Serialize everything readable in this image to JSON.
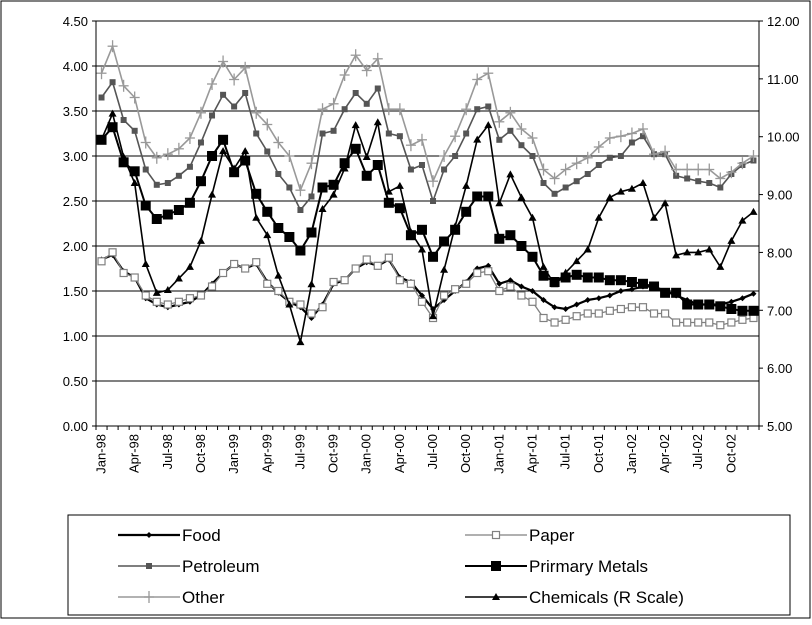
{
  "chart_data": {
    "type": "line",
    "categories": [
      "Jan-98",
      null,
      null,
      "Apr-98",
      null,
      null,
      "Jul-98",
      null,
      null,
      "Oct-98",
      null,
      null,
      "Jan-99",
      null,
      null,
      "Apr-99",
      null,
      null,
      "Jul-99",
      null,
      null,
      "Oct-99",
      null,
      null,
      "Jan-00",
      null,
      null,
      "Apr-00",
      null,
      null,
      "Jul-00",
      null,
      null,
      "Oct-00",
      null,
      null,
      "Jan-01",
      null,
      null,
      "Apr-01",
      null,
      null,
      "Jul-01",
      null,
      null,
      "Oct-01",
      null,
      null,
      "Jan-02",
      null,
      null,
      "Apr-02",
      null,
      null,
      "Jul-02",
      null,
      null,
      "Oct-02",
      null,
      null
    ],
    "ylim": [
      0,
      4.5
    ],
    "yticks": [
      {
        "value": 0,
        "label": "0.00"
      },
      {
        "value": 0.5,
        "label": "0.50"
      },
      {
        "value": 1,
        "label": "1.00"
      },
      {
        "value": 1.5,
        "label": "1.50"
      },
      {
        "value": 2,
        "label": "2.00"
      },
      {
        "value": 2.5,
        "label": "2.50"
      },
      {
        "value": 3,
        "label": "3.00"
      },
      {
        "value": 3.5,
        "label": "3.50"
      },
      {
        "value": 4,
        "label": "4.00"
      },
      {
        "value": 4.5,
        "label": "4.50"
      }
    ],
    "y2lim": [
      5,
      12
    ],
    "y2ticks": [
      {
        "value": 5,
        "label": "5.00"
      },
      {
        "value": 6,
        "label": "6.00"
      },
      {
        "value": 7,
        "label": "7.00"
      },
      {
        "value": 8,
        "label": "8.00"
      },
      {
        "value": 9,
        "label": "9.00"
      },
      {
        "value": 10,
        "label": "10.00"
      },
      {
        "value": 11,
        "label": "11.00"
      },
      {
        "value": 12,
        "label": "12.00"
      }
    ],
    "grid": true,
    "legend": "bottom",
    "series": [
      {
        "name": "Food",
        "color": "#000000",
        "marker": "diamond",
        "values": [
          1.85,
          1.9,
          1.72,
          1.65,
          1.42,
          1.35,
          1.32,
          1.35,
          1.38,
          1.45,
          1.58,
          1.7,
          1.8,
          1.75,
          1.8,
          1.6,
          1.48,
          1.38,
          1.32,
          1.2,
          1.35,
          1.58,
          1.62,
          1.75,
          1.82,
          1.78,
          1.85,
          1.65,
          1.6,
          1.45,
          1.3,
          1.4,
          1.5,
          1.6,
          1.75,
          1.78,
          1.58,
          1.62,
          1.55,
          1.5,
          1.4,
          1.32,
          1.3,
          1.35,
          1.4,
          1.42,
          1.45,
          1.5,
          1.52,
          1.55,
          1.55,
          1.5,
          1.45,
          1.4,
          1.35,
          1.35,
          1.35,
          1.38,
          1.42,
          1.47
        ]
      },
      {
        "name": "Paper",
        "color": "#808080",
        "marker": "square-open",
        "values": [
          1.83,
          1.93,
          1.7,
          1.65,
          1.45,
          1.38,
          1.35,
          1.38,
          1.42,
          1.45,
          1.55,
          1.7,
          1.8,
          1.75,
          1.82,
          1.58,
          1.5,
          1.38,
          1.35,
          1.25,
          1.32,
          1.6,
          1.62,
          1.75,
          1.85,
          1.78,
          1.87,
          1.62,
          1.58,
          1.38,
          1.2,
          1.45,
          1.52,
          1.58,
          1.7,
          1.72,
          1.5,
          1.55,
          1.45,
          1.38,
          1.2,
          1.15,
          1.18,
          1.22,
          1.25,
          1.25,
          1.28,
          1.3,
          1.32,
          1.32,
          1.25,
          1.25,
          1.15,
          1.15,
          1.15,
          1.15,
          1.12,
          1.15,
          1.18,
          1.2
        ]
      },
      {
        "name": "Petroleum",
        "color": "#555555",
        "marker": "square",
        "values": [
          3.65,
          3.82,
          3.4,
          3.28,
          2.85,
          2.68,
          2.7,
          2.78,
          2.88,
          3.15,
          3.45,
          3.68,
          3.55,
          3.7,
          3.25,
          3.05,
          2.8,
          2.65,
          2.4,
          2.55,
          3.25,
          3.28,
          3.52,
          3.7,
          3.58,
          3.75,
          3.25,
          3.22,
          2.85,
          2.9,
          2.5,
          2.85,
          3.0,
          3.25,
          3.52,
          3.55,
          3.18,
          3.28,
          3.12,
          3.0,
          2.7,
          2.58,
          2.65,
          2.72,
          2.8,
          2.9,
          2.98,
          3.0,
          3.15,
          3.22,
          3.02,
          3.02,
          2.78,
          2.75,
          2.72,
          2.7,
          2.65,
          2.8,
          2.9,
          2.95
        ]
      },
      {
        "name": "Prirmary Metals",
        "color": "#000000",
        "marker": "square-big",
        "values": [
          3.18,
          3.32,
          2.93,
          2.83,
          2.45,
          2.3,
          2.35,
          2.4,
          2.48,
          2.72,
          3.0,
          3.18,
          2.82,
          2.95,
          2.58,
          2.38,
          2.2,
          2.1,
          1.95,
          2.15,
          2.65,
          2.68,
          2.92,
          3.08,
          2.78,
          2.9,
          2.48,
          2.42,
          2.12,
          2.18,
          1.88,
          2.05,
          2.18,
          2.38,
          2.55,
          2.55,
          2.08,
          2.12,
          2.0,
          1.88,
          1.67,
          1.6,
          1.65,
          1.68,
          1.65,
          1.65,
          1.62,
          1.62,
          1.6,
          1.58,
          1.55,
          1.48,
          1.48,
          1.35,
          1.35,
          1.35,
          1.33,
          1.3,
          1.28,
          1.28
        ]
      },
      {
        "name": "Other",
        "color": "#999999",
        "marker": "plus",
        "values": [
          3.92,
          4.22,
          3.78,
          3.65,
          3.15,
          2.98,
          3.02,
          3.08,
          3.2,
          3.48,
          3.8,
          4.05,
          3.85,
          3.98,
          3.48,
          3.35,
          3.15,
          3.0,
          2.62,
          2.92,
          3.52,
          3.58,
          3.9,
          4.12,
          3.95,
          4.08,
          3.52,
          3.52,
          3.12,
          3.18,
          2.72,
          3.0,
          3.22,
          3.52,
          3.85,
          3.92,
          3.38,
          3.48,
          3.3,
          3.2,
          2.85,
          2.75,
          2.85,
          2.92,
          2.98,
          3.1,
          3.2,
          3.22,
          3.25,
          3.3,
          3.02,
          3.05,
          2.85,
          2.85,
          2.85,
          2.85,
          2.75,
          2.82,
          2.92,
          3.0
        ]
      },
      {
        "name": "Chemicals (R Scale)",
        "color": "#000000",
        "marker": "triangle",
        "axis": "y2",
        "values": [
          9.95,
          10.4,
          9.65,
          9.2,
          7.8,
          7.3,
          7.35,
          7.55,
          7.75,
          8.2,
          9.0,
          9.75,
          9.45,
          9.75,
          8.6,
          8.3,
          7.6,
          7.1,
          6.45,
          7.45,
          8.75,
          9.0,
          9.45,
          10.2,
          9.65,
          10.25,
          9.05,
          9.15,
          8.35,
          8.05,
          6.9,
          7.7,
          8.45,
          9.15,
          9.95,
          10.2,
          8.85,
          9.35,
          8.95,
          8.6,
          7.75,
          7.45,
          7.65,
          7.85,
          8.05,
          8.6,
          8.95,
          9.05,
          9.1,
          9.2,
          8.6,
          8.85,
          7.95,
          8.0,
          8.0,
          8.05,
          7.75,
          8.2,
          8.55,
          8.7
        ]
      }
    ]
  }
}
